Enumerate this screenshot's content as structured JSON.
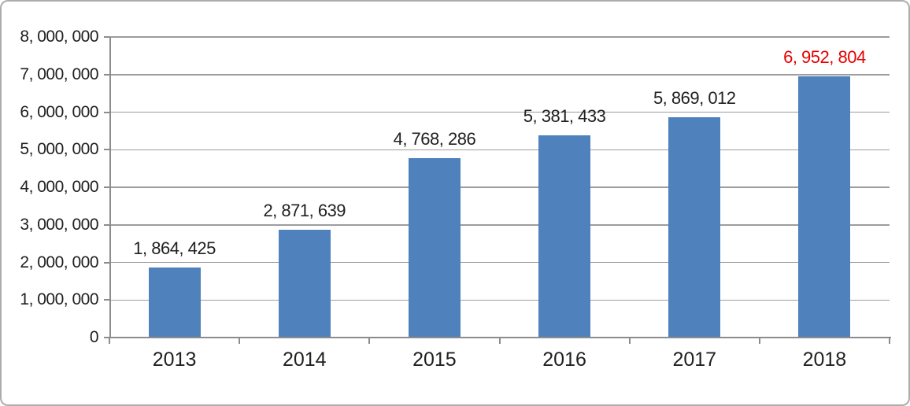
{
  "chart_data": {
    "type": "bar",
    "title": "",
    "xlabel": "",
    "ylabel": "",
    "categories": [
      "2013",
      "2014",
      "2015",
      "2016",
      "2017",
      "2018"
    ],
    "values": [
      1864425,
      2871639,
      4768286,
      5381433,
      5869012,
      6952804
    ],
    "value_labels": [
      "1, 864, 425",
      "2, 871, 639",
      "4, 768, 286",
      "5, 381, 433",
      "5, 869, 012",
      "6, 952, 804"
    ],
    "highlighted_category": "2018",
    "highlight_index": 5,
    "ylim": [
      0,
      8000000
    ],
    "ytick_interval": 1000000,
    "ytick_labels": [
      "0",
      "1, 000, 000",
      "2, 000, 000",
      "3, 000, 000",
      "4, 000, 000",
      "5, 000, 000",
      "6, 000, 000",
      "7, 000, 000",
      "8, 000, 000"
    ],
    "grid": true,
    "legend": false,
    "colors": {
      "bar": "#4f81bd",
      "gridline": "#9d9d9d",
      "axis": "#8c8c8c",
      "label_text": "#202020",
      "highlight_label_text": "#e60000",
      "frame_border": "#adadad",
      "background": "#ffffff"
    }
  }
}
